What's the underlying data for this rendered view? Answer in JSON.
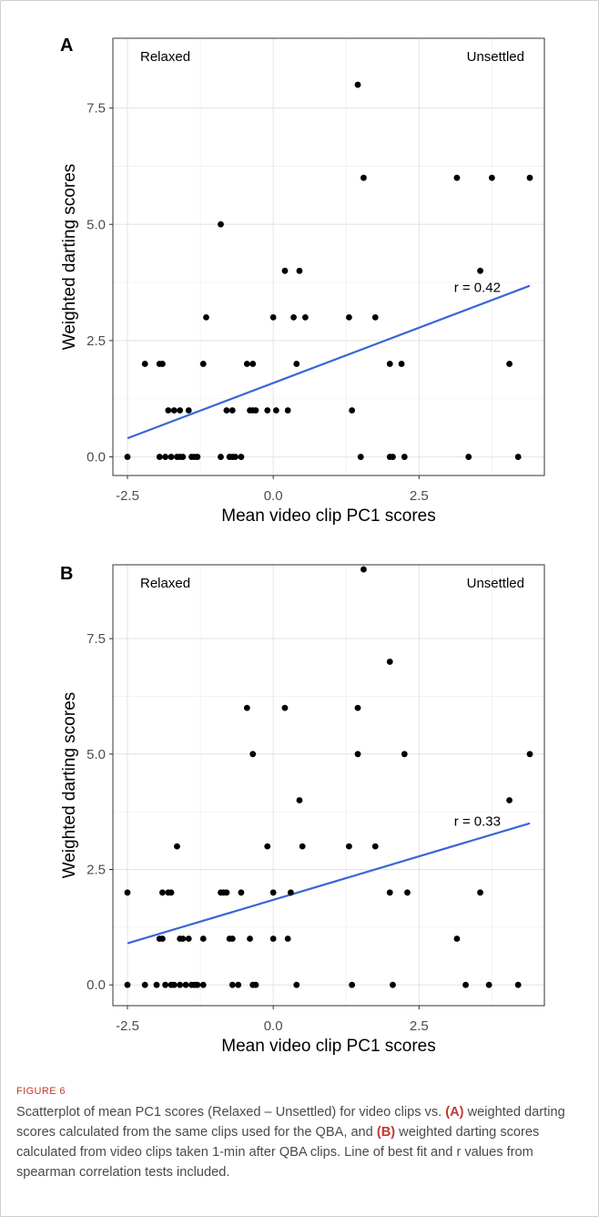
{
  "chart_data": [
    {
      "type": "scatter",
      "panel_label": "A",
      "xlabel": "Mean video clip PC1 scores",
      "ylabel": "Weighted darting scores",
      "xlim": [
        -2.75,
        4.65
      ],
      "ylim": [
        -0.4,
        9.0
      ],
      "xticks": [
        -2.5,
        0.0,
        2.5
      ],
      "xtick_labels": [
        "-2.5",
        "0.0",
        "2.5"
      ],
      "yticks": [
        0.0,
        2.5,
        5.0,
        7.5
      ],
      "ytick_labels": [
        "0.0",
        "2.5",
        "5.0",
        "7.5"
      ],
      "grid": true,
      "annotations": {
        "left": "Relaxed",
        "right": "Unsettled",
        "r_label": "r = 0.42",
        "r_position": [
          3.1,
          3.55
        ]
      },
      "fit_line": {
        "x": [
          -2.5,
          4.4
        ],
        "y": [
          0.4,
          3.68
        ],
        "color": "#3a66d6"
      },
      "points": [
        [
          -2.5,
          0
        ],
        [
          -2.2,
          2
        ],
        [
          -1.95,
          2
        ],
        [
          -1.9,
          2
        ],
        [
          -1.95,
          0
        ],
        [
          -1.85,
          0
        ],
        [
          -1.8,
          1
        ],
        [
          -1.75,
          0
        ],
        [
          -1.7,
          1
        ],
        [
          -1.65,
          0
        ],
        [
          -1.6,
          1
        ],
        [
          -1.6,
          0
        ],
        [
          -1.55,
          0
        ],
        [
          -1.45,
          1
        ],
        [
          -1.4,
          0
        ],
        [
          -1.35,
          0
        ],
        [
          -1.3,
          0
        ],
        [
          -1.2,
          2
        ],
        [
          -1.15,
          3
        ],
        [
          -0.9,
          5
        ],
        [
          -0.9,
          0
        ],
        [
          -0.8,
          1
        ],
        [
          -0.75,
          0
        ],
        [
          -0.7,
          1
        ],
        [
          -0.7,
          0
        ],
        [
          -0.65,
          0
        ],
        [
          -0.55,
          0
        ],
        [
          -0.45,
          2
        ],
        [
          -0.4,
          1
        ],
        [
          -0.35,
          2
        ],
        [
          -0.35,
          1
        ],
        [
          -0.3,
          1
        ],
        [
          -0.1,
          1
        ],
        [
          0.0,
          3
        ],
        [
          0.05,
          1
        ],
        [
          0.2,
          4
        ],
        [
          0.25,
          1
        ],
        [
          0.35,
          3
        ],
        [
          0.4,
          2
        ],
        [
          0.45,
          4
        ],
        [
          0.55,
          3
        ],
        [
          1.3,
          3
        ],
        [
          1.35,
          1
        ],
        [
          1.45,
          8
        ],
        [
          1.5,
          0
        ],
        [
          1.55,
          6
        ],
        [
          1.75,
          3
        ],
        [
          2.0,
          2
        ],
        [
          2.0,
          0
        ],
        [
          2.05,
          0
        ],
        [
          2.2,
          2
        ],
        [
          2.25,
          0
        ],
        [
          3.15,
          6
        ],
        [
          3.35,
          0
        ],
        [
          3.55,
          4
        ],
        [
          3.75,
          6
        ],
        [
          4.05,
          2
        ],
        [
          4.2,
          0
        ],
        [
          4.4,
          6
        ]
      ]
    },
    {
      "type": "scatter",
      "panel_label": "B",
      "xlabel": "Mean video clip PC1 scores",
      "ylabel": "Weighted darting scores",
      "xlim": [
        -2.75,
        4.65
      ],
      "ylim": [
        -0.45,
        9.1
      ],
      "xticks": [
        -2.5,
        0.0,
        2.5
      ],
      "xtick_labels": [
        "-2.5",
        "0.0",
        "2.5"
      ],
      "yticks": [
        0.0,
        2.5,
        5.0,
        7.5
      ],
      "ytick_labels": [
        "0.0",
        "2.5",
        "5.0",
        "7.5"
      ],
      "grid": true,
      "annotations": {
        "left": "Relaxed",
        "right": "Unsettled",
        "r_label": "r = 0.33",
        "r_position": [
          3.1,
          3.45
        ]
      },
      "fit_line": {
        "x": [
          -2.5,
          4.4
        ],
        "y": [
          0.9,
          3.5
        ],
        "color": "#3a66d6"
      },
      "points": [
        [
          -2.5,
          2
        ],
        [
          -2.5,
          0
        ],
        [
          -2.2,
          0
        ],
        [
          -2.0,
          0
        ],
        [
          -1.95,
          1
        ],
        [
          -1.9,
          1
        ],
        [
          -1.9,
          2
        ],
        [
          -1.85,
          0
        ],
        [
          -1.8,
          2
        ],
        [
          -1.75,
          2
        ],
        [
          -1.75,
          0
        ],
        [
          -1.7,
          0
        ],
        [
          -1.65,
          3
        ],
        [
          -1.6,
          1
        ],
        [
          -1.6,
          0
        ],
        [
          -1.55,
          1
        ],
        [
          -1.5,
          0
        ],
        [
          -1.45,
          1
        ],
        [
          -1.4,
          0
        ],
        [
          -1.35,
          0
        ],
        [
          -1.3,
          0
        ],
        [
          -1.2,
          1
        ],
        [
          -1.2,
          0
        ],
        [
          -0.9,
          2
        ],
        [
          -0.85,
          2
        ],
        [
          -0.8,
          2
        ],
        [
          -0.75,
          1
        ],
        [
          -0.7,
          1
        ],
        [
          -0.7,
          0
        ],
        [
          -0.6,
          0
        ],
        [
          -0.55,
          2
        ],
        [
          -0.45,
          6
        ],
        [
          -0.4,
          1
        ],
        [
          -0.35,
          5
        ],
        [
          -0.35,
          0
        ],
        [
          -0.3,
          0
        ],
        [
          -0.1,
          3
        ],
        [
          0.0,
          2
        ],
        [
          0.0,
          1
        ],
        [
          0.2,
          6
        ],
        [
          0.25,
          1
        ],
        [
          0.3,
          2
        ],
        [
          0.4,
          0
        ],
        [
          0.45,
          4
        ],
        [
          0.5,
          3
        ],
        [
          1.3,
          3
        ],
        [
          1.35,
          0
        ],
        [
          1.45,
          6
        ],
        [
          1.45,
          5
        ],
        [
          1.55,
          9
        ],
        [
          1.75,
          3
        ],
        [
          2.0,
          7
        ],
        [
          2.0,
          2
        ],
        [
          2.05,
          0
        ],
        [
          2.25,
          5
        ],
        [
          2.3,
          2
        ],
        [
          3.15,
          1
        ],
        [
          3.3,
          0
        ],
        [
          3.55,
          2
        ],
        [
          3.7,
          0
        ],
        [
          4.05,
          4
        ],
        [
          4.2,
          0
        ],
        [
          4.4,
          5
        ]
      ]
    }
  ],
  "figure_label": "FIGURE 6",
  "caption": {
    "part1": "Scatterplot of mean PC1 scores (Relaxed – Unsettled) for video clips vs. ",
    "a": "(A)",
    "part2": " weighted darting scores calculated from the same clips used for the QBA, and ",
    "b": "(B)",
    "part3": " weighted darting scores calculated from video clips taken 1-min after QBA clips. Line of best fit and r values from spearman correlation tests included."
  }
}
